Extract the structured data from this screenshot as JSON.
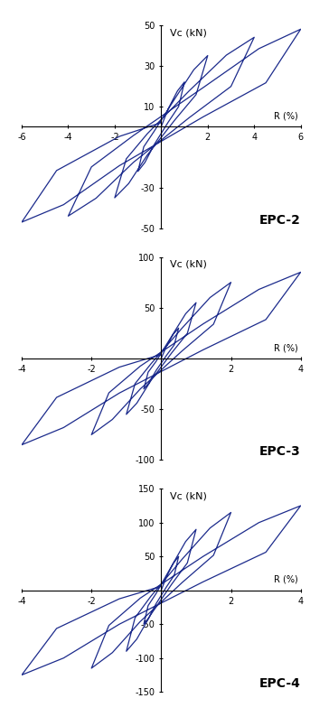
{
  "chart_data": [
    {
      "type": "line",
      "annotation": "EPC-2",
      "x_label": "R (%)",
      "y_label": "Vc (kN)",
      "color": "#1c2b8c",
      "xlim": [
        -6,
        6
      ],
      "xticks": [
        -6,
        -4,
        -2,
        2,
        4,
        6
      ],
      "ylim": [
        -50,
        50
      ],
      "yticks": [
        -50,
        -30,
        10,
        30,
        50
      ],
      "x": [
        0,
        0.3,
        0.7,
        1,
        0.75,
        0.3,
        -0.3,
        -0.7,
        -1,
        -0.75,
        -0.3,
        0.6,
        1.4,
        2,
        1.5,
        0.6,
        -0.6,
        -1.4,
        -2,
        -1.5,
        -0.6,
        1.2,
        2.8,
        4,
        3,
        1.2,
        -1.2,
        -2.8,
        -4,
        -3,
        -1.2,
        1.8,
        4.2,
        6,
        4.5,
        1.8,
        -1.8,
        -4.2,
        -6,
        -4.5,
        -1.8,
        0
      ],
      "values": [
        0,
        8.8,
        17.6,
        22,
        9.9,
        2.2,
        -8.8,
        -17.6,
        -22,
        -9.9,
        -2.2,
        14,
        28,
        35,
        15.8,
        3.5,
        -14,
        -28,
        -35,
        -15.8,
        -3.5,
        17.6,
        35.2,
        44,
        19.8,
        4.4,
        -17.6,
        -35.2,
        -44,
        -19.8,
        -4.4,
        19.2,
        38.4,
        48,
        21.6,
        4.8,
        -19.2,
        -38.4,
        -47,
        -21.6,
        -4.8,
        2
      ]
    },
    {
      "type": "line",
      "annotation": "EPC-3",
      "x_label": "R (%)",
      "y_label": "Vc (kN)",
      "color": "#1c2b8c",
      "xlim": [
        -4,
        4
      ],
      "xticks": [
        -4,
        -2,
        2,
        4
      ],
      "ylim": [
        -100,
        100
      ],
      "yticks": [
        -100,
        -50,
        50,
        100
      ],
      "x": [
        0,
        0.15,
        0.35,
        0.5,
        0.375,
        0.15,
        -0.15,
        -0.35,
        -0.5,
        -0.375,
        -0.15,
        0.3,
        0.7,
        1,
        0.75,
        0.3,
        -0.3,
        -0.7,
        -1,
        -0.75,
        -0.3,
        0.6,
        1.4,
        2,
        1.5,
        0.6,
        -0.6,
        -1.4,
        -2,
        -1.5,
        -0.6,
        1.2,
        2.8,
        4,
        3,
        1.2,
        -1.2,
        -2.8,
        -4,
        -3,
        -1.2,
        0
      ],
      "values": [
        0,
        12,
        24,
        30,
        13.5,
        3,
        -12,
        -24,
        -30,
        -13.5,
        -3,
        22,
        44,
        55,
        24.8,
        5.5,
        -22,
        -44,
        -55,
        -24.8,
        -5.5,
        30,
        60,
        75,
        33.8,
        7.5,
        -30,
        -60,
        -75,
        -33.8,
        -7.5,
        34,
        68,
        85,
        38.3,
        8.5,
        -34,
        -68,
        -85,
        -38.3,
        -8.5,
        4
      ]
    },
    {
      "type": "line",
      "annotation": "EPC-4",
      "x_label": "R (%)",
      "y_label": "Vc (kN)",
      "color": "#1c2b8c",
      "xlim": [
        -4,
        4
      ],
      "xticks": [
        -4,
        -2,
        2,
        4
      ],
      "ylim": [
        -150,
        150
      ],
      "yticks": [
        -150,
        -100,
        -50,
        50,
        100,
        150
      ],
      "x": [
        0,
        0.15,
        0.35,
        0.5,
        0.375,
        0.15,
        -0.15,
        -0.35,
        -0.5,
        -0.375,
        -0.15,
        0.3,
        0.7,
        1,
        0.75,
        0.3,
        -0.3,
        -0.7,
        -1,
        -0.75,
        -0.3,
        0.6,
        1.4,
        2,
        1.5,
        0.6,
        -0.6,
        -1.4,
        -2,
        -1.5,
        -0.6,
        1.2,
        2.8,
        4,
        3,
        1.2,
        -1.2,
        -2.8,
        -4,
        -3,
        -1.2,
        0
      ],
      "values": [
        0,
        20,
        40,
        50,
        22.5,
        5,
        -20,
        -40,
        -50,
        -22.5,
        -5,
        36,
        72,
        90,
        40.5,
        9,
        -36,
        -72,
        -90,
        -40.5,
        -9,
        46,
        92,
        115,
        51.8,
        11.5,
        -46,
        -92,
        -115,
        -51.8,
        -11.5,
        50,
        100,
        125,
        56.3,
        12.5,
        -50,
        -100,
        -125,
        -56.3,
        -12.5,
        6
      ]
    }
  ]
}
